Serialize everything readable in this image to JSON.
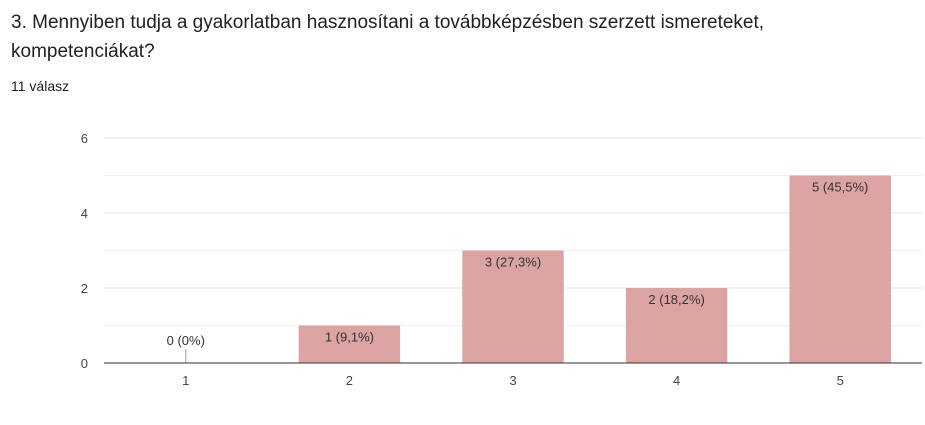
{
  "question": {
    "title": "3. Mennyiben tudja a gyakorlatban hasznosítani a továbbképzésben szerzett ismereteket, kompetenciákat?",
    "response_count": "11 válasz"
  },
  "colors": {
    "bar": "#dba3a2",
    "gridline": "#e6e6e6",
    "axis": "#333333"
  },
  "chart_data": {
    "type": "bar",
    "title": "",
    "xlabel": "",
    "ylabel": "",
    "categories": [
      "1",
      "2",
      "3",
      "4",
      "5"
    ],
    "values": [
      0,
      1,
      3,
      2,
      5
    ],
    "data_labels": [
      "0 (0%)",
      "1 (9,1%)",
      "3 (27,3%)",
      "2 (18,2%)",
      "5 (45,5%)"
    ],
    "ylim": [
      0,
      6
    ],
    "yticks": [
      0,
      2,
      4,
      6
    ],
    "grid": true,
    "legend": "none"
  }
}
